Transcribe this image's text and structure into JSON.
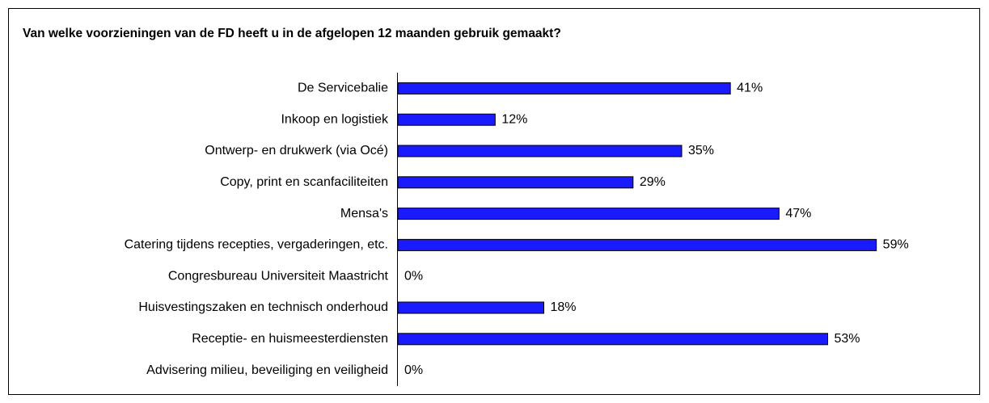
{
  "chart_data": {
    "type": "hbar",
    "title": "Van welke voorzieningen van de FD heeft u in de afgelopen 12 maanden gebruik gemaakt?",
    "categories": [
      "De Servicebalie",
      "Inkoop en logistiek",
      "Ontwerp- en drukwerk (via Océ)",
      "Copy, print en scanfaciliteiten",
      "Mensa's",
      "Catering tijdens recepties, vergaderingen, etc.",
      "Congresbureau Universiteit Maastricht",
      "Huisvestingszaken en technisch onderhoud",
      "Receptie- en huismeesterdiensten",
      "Advisering milieu, beveiliging en veiligheid"
    ],
    "values": [
      41,
      12,
      35,
      29,
      47,
      59,
      0,
      18,
      53,
      0
    ],
    "value_labels": [
      "41%",
      "12%",
      "35%",
      "29%",
      "47%",
      "59%",
      "0%",
      "18%",
      "53%",
      "0%"
    ],
    "color": "#1a1aff",
    "xlim": [
      0,
      70
    ]
  }
}
